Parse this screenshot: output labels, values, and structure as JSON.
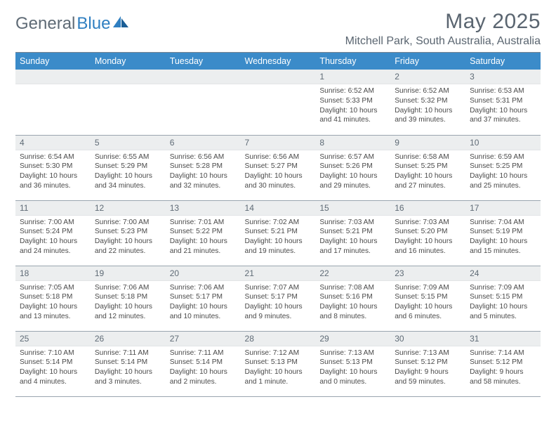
{
  "logo": {
    "text1": "General",
    "text2": "Blue"
  },
  "header": {
    "month_title": "May 2025",
    "location": "Mitchell Park, South Australia, Australia"
  },
  "colors": {
    "header_bg": "#3b8bc9",
    "header_text": "#ffffff",
    "day_num_bg": "#eceeef",
    "text_muted": "#5f6b76",
    "border": "#9aa5af",
    "logo_blue": "#2f7fc1"
  },
  "weekdays": [
    "Sunday",
    "Monday",
    "Tuesday",
    "Wednesday",
    "Thursday",
    "Friday",
    "Saturday"
  ],
  "weeks": [
    [
      null,
      null,
      null,
      null,
      {
        "n": "1",
        "sunrise": "Sunrise: 6:52 AM",
        "sunset": "Sunset: 5:33 PM",
        "daylight": "Daylight: 10 hours and 41 minutes."
      },
      {
        "n": "2",
        "sunrise": "Sunrise: 6:52 AM",
        "sunset": "Sunset: 5:32 PM",
        "daylight": "Daylight: 10 hours and 39 minutes."
      },
      {
        "n": "3",
        "sunrise": "Sunrise: 6:53 AM",
        "sunset": "Sunset: 5:31 PM",
        "daylight": "Daylight: 10 hours and 37 minutes."
      }
    ],
    [
      {
        "n": "4",
        "sunrise": "Sunrise: 6:54 AM",
        "sunset": "Sunset: 5:30 PM",
        "daylight": "Daylight: 10 hours and 36 minutes."
      },
      {
        "n": "5",
        "sunrise": "Sunrise: 6:55 AM",
        "sunset": "Sunset: 5:29 PM",
        "daylight": "Daylight: 10 hours and 34 minutes."
      },
      {
        "n": "6",
        "sunrise": "Sunrise: 6:56 AM",
        "sunset": "Sunset: 5:28 PM",
        "daylight": "Daylight: 10 hours and 32 minutes."
      },
      {
        "n": "7",
        "sunrise": "Sunrise: 6:56 AM",
        "sunset": "Sunset: 5:27 PM",
        "daylight": "Daylight: 10 hours and 30 minutes."
      },
      {
        "n": "8",
        "sunrise": "Sunrise: 6:57 AM",
        "sunset": "Sunset: 5:26 PM",
        "daylight": "Daylight: 10 hours and 29 minutes."
      },
      {
        "n": "9",
        "sunrise": "Sunrise: 6:58 AM",
        "sunset": "Sunset: 5:25 PM",
        "daylight": "Daylight: 10 hours and 27 minutes."
      },
      {
        "n": "10",
        "sunrise": "Sunrise: 6:59 AM",
        "sunset": "Sunset: 5:25 PM",
        "daylight": "Daylight: 10 hours and 25 minutes."
      }
    ],
    [
      {
        "n": "11",
        "sunrise": "Sunrise: 7:00 AM",
        "sunset": "Sunset: 5:24 PM",
        "daylight": "Daylight: 10 hours and 24 minutes."
      },
      {
        "n": "12",
        "sunrise": "Sunrise: 7:00 AM",
        "sunset": "Sunset: 5:23 PM",
        "daylight": "Daylight: 10 hours and 22 minutes."
      },
      {
        "n": "13",
        "sunrise": "Sunrise: 7:01 AM",
        "sunset": "Sunset: 5:22 PM",
        "daylight": "Daylight: 10 hours and 21 minutes."
      },
      {
        "n": "14",
        "sunrise": "Sunrise: 7:02 AM",
        "sunset": "Sunset: 5:21 PM",
        "daylight": "Daylight: 10 hours and 19 minutes."
      },
      {
        "n": "15",
        "sunrise": "Sunrise: 7:03 AM",
        "sunset": "Sunset: 5:21 PM",
        "daylight": "Daylight: 10 hours and 17 minutes."
      },
      {
        "n": "16",
        "sunrise": "Sunrise: 7:03 AM",
        "sunset": "Sunset: 5:20 PM",
        "daylight": "Daylight: 10 hours and 16 minutes."
      },
      {
        "n": "17",
        "sunrise": "Sunrise: 7:04 AM",
        "sunset": "Sunset: 5:19 PM",
        "daylight": "Daylight: 10 hours and 15 minutes."
      }
    ],
    [
      {
        "n": "18",
        "sunrise": "Sunrise: 7:05 AM",
        "sunset": "Sunset: 5:18 PM",
        "daylight": "Daylight: 10 hours and 13 minutes."
      },
      {
        "n": "19",
        "sunrise": "Sunrise: 7:06 AM",
        "sunset": "Sunset: 5:18 PM",
        "daylight": "Daylight: 10 hours and 12 minutes."
      },
      {
        "n": "20",
        "sunrise": "Sunrise: 7:06 AM",
        "sunset": "Sunset: 5:17 PM",
        "daylight": "Daylight: 10 hours and 10 minutes."
      },
      {
        "n": "21",
        "sunrise": "Sunrise: 7:07 AM",
        "sunset": "Sunset: 5:17 PM",
        "daylight": "Daylight: 10 hours and 9 minutes."
      },
      {
        "n": "22",
        "sunrise": "Sunrise: 7:08 AM",
        "sunset": "Sunset: 5:16 PM",
        "daylight": "Daylight: 10 hours and 8 minutes."
      },
      {
        "n": "23",
        "sunrise": "Sunrise: 7:09 AM",
        "sunset": "Sunset: 5:15 PM",
        "daylight": "Daylight: 10 hours and 6 minutes."
      },
      {
        "n": "24",
        "sunrise": "Sunrise: 7:09 AM",
        "sunset": "Sunset: 5:15 PM",
        "daylight": "Daylight: 10 hours and 5 minutes."
      }
    ],
    [
      {
        "n": "25",
        "sunrise": "Sunrise: 7:10 AM",
        "sunset": "Sunset: 5:14 PM",
        "daylight": "Daylight: 10 hours and 4 minutes."
      },
      {
        "n": "26",
        "sunrise": "Sunrise: 7:11 AM",
        "sunset": "Sunset: 5:14 PM",
        "daylight": "Daylight: 10 hours and 3 minutes."
      },
      {
        "n": "27",
        "sunrise": "Sunrise: 7:11 AM",
        "sunset": "Sunset: 5:14 PM",
        "daylight": "Daylight: 10 hours and 2 minutes."
      },
      {
        "n": "28",
        "sunrise": "Sunrise: 7:12 AM",
        "sunset": "Sunset: 5:13 PM",
        "daylight": "Daylight: 10 hours and 1 minute."
      },
      {
        "n": "29",
        "sunrise": "Sunrise: 7:13 AM",
        "sunset": "Sunset: 5:13 PM",
        "daylight": "Daylight: 10 hours and 0 minutes."
      },
      {
        "n": "30",
        "sunrise": "Sunrise: 7:13 AM",
        "sunset": "Sunset: 5:12 PM",
        "daylight": "Daylight: 9 hours and 59 minutes."
      },
      {
        "n": "31",
        "sunrise": "Sunrise: 7:14 AM",
        "sunset": "Sunset: 5:12 PM",
        "daylight": "Daylight: 9 hours and 58 minutes."
      }
    ]
  ]
}
